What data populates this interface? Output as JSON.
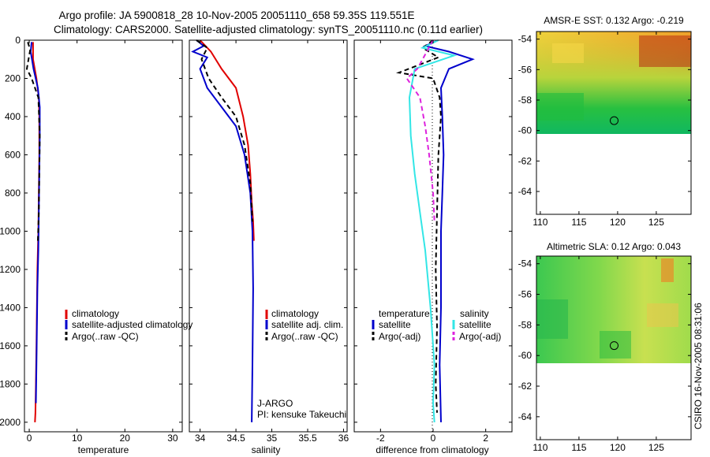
{
  "page": {
    "title_line1": "Argo profile: JA 5900818_28 10-Nov-2005 20051110_658 59.35S 119.551E",
    "title_line2": "Climatology: CARS2000. Satellite-adjusted climatology: synTS_20051110.nc (0.11d earlier)",
    "footer_stamp": "CSIRO 16-Nov-2005 08:31:06"
  },
  "colors": {
    "red": "#e00000",
    "blue": "#0000cc",
    "black": "#000000",
    "cyan": "#33e6e6",
    "magenta": "#dd22dd"
  },
  "chart_data": [
    {
      "id": "temperature",
      "type": "line",
      "xlabel": "temperature",
      "xlim": [
        -1,
        32
      ],
      "ylim": [
        2050,
        0
      ],
      "x_ticks": [
        0,
        10,
        20,
        30
      ],
      "y_ticks": [
        0,
        200,
        400,
        600,
        800,
        1000,
        1200,
        1400,
        1600,
        1800,
        2000
      ],
      "legend": [
        "climatology",
        "satellite-adjusted climatology",
        "Argo(..raw -QC)"
      ],
      "series": [
        {
          "name": "climatology",
          "color": "red",
          "dash": false,
          "x": [
            0.8,
            0.8,
            1.5,
            2.0,
            2.1,
            2.1,
            2.0,
            1.9,
            1.7,
            1.6,
            1.5,
            1.4,
            1.3,
            1.2
          ],
          "y": [
            10,
            100,
            200,
            300,
            400,
            600,
            800,
            1000,
            1200,
            1400,
            1600,
            1800,
            1950,
            2000
          ]
        },
        {
          "name": "satellite-adjusted climatology",
          "color": "blue",
          "dash": false,
          "x": [
            0.5,
            0.3,
            0.9,
            1.8,
            2.2,
            2.2,
            2.1,
            2.0,
            1.9,
            1.7,
            1.6,
            1.5,
            1.4
          ],
          "y": [
            10,
            60,
            150,
            250,
            350,
            500,
            700,
            900,
            1100,
            1300,
            1500,
            1700,
            1900
          ]
        },
        {
          "name": "Argo(..raw -QC)",
          "color": "black",
          "dash": true,
          "x": [
            -0.3,
            0.2,
            -0.5,
            0.5,
            1.9,
            2.2,
            2.1,
            2.0,
            1.8
          ],
          "y": [
            10,
            50,
            150,
            200,
            300,
            500,
            700,
            900,
            1050
          ]
        }
      ]
    },
    {
      "id": "salinity",
      "type": "line",
      "xlabel": "salinity",
      "xlim": [
        33.85,
        36.05
      ],
      "ylim": [
        2050,
        0
      ],
      "x_ticks": [
        34,
        34.5,
        35,
        35.5,
        36
      ],
      "legend": [
        "climatology",
        "satellite adj. clim.",
        "Argo(..raw -QC)"
      ],
      "annotation": [
        "J-ARGO",
        "PI: kensuke Takeuchi"
      ],
      "series": [
        {
          "name": "climatology",
          "color": "red",
          "dash": false,
          "x": [
            34.0,
            34.15,
            34.3,
            34.5,
            34.6,
            34.67,
            34.7,
            34.72,
            34.74,
            34.75,
            34.75
          ],
          "y": [
            0,
            60,
            150,
            250,
            400,
            550,
            700,
            850,
            950,
            1050,
            1050
          ]
        },
        {
          "name": "satellite adj. clim.",
          "color": "blue",
          "dash": false,
          "x": [
            33.95,
            34.05,
            33.9,
            34.1,
            34.0,
            34.1,
            34.3,
            34.5,
            34.62,
            34.7,
            34.73,
            34.74,
            34.73,
            34.72
          ],
          "y": [
            0,
            30,
            60,
            90,
            150,
            250,
            350,
            450,
            600,
            800,
            1000,
            1300,
            1700,
            2000
          ]
        },
        {
          "name": "Argo(..raw -QC)",
          "color": "black",
          "dash": true,
          "x": [
            33.95,
            34.1,
            34.02,
            34.12,
            34.3,
            34.5,
            34.62,
            34.7,
            34.73
          ],
          "y": [
            0,
            40,
            100,
            200,
            300,
            400,
            550,
            750,
            950
          ]
        }
      ]
    },
    {
      "id": "difference",
      "type": "line",
      "xlabel": "difference from climatology",
      "xlim": [
        -3,
        3
      ],
      "ylim": [
        2050,
        0
      ],
      "x_ticks": [
        -2,
        0,
        2
      ],
      "legend_temperature_header": "temperature",
      "legend_salinity_header": "salinity",
      "legend": [
        "satellite",
        "Argo(-adj)",
        "satellite",
        "Argo(-adj)"
      ],
      "series": [
        {
          "name": "temperature satellite",
          "color": "blue",
          "dash": false,
          "x": [
            0.2,
            -0.3,
            0.6,
            1.5,
            0.6,
            0.3,
            0.35,
            0.4,
            0.35,
            0.3,
            0.3,
            0.3,
            0.25,
            0.3
          ],
          "y": [
            0,
            30,
            60,
            100,
            150,
            250,
            400,
            600,
            800,
            1000,
            1200,
            1400,
            1700,
            2000
          ]
        },
        {
          "name": "temperature Argo(-adj)",
          "color": "black",
          "dash": true,
          "x": [
            0.0,
            -0.4,
            0.2,
            -1.3,
            0.0,
            0.25,
            0.3,
            0.2,
            0.15,
            0.1,
            0.15,
            0.1,
            0.15
          ],
          "y": [
            0,
            40,
            90,
            170,
            200,
            300,
            400,
            600,
            900,
            1200,
            1500,
            1800,
            1950
          ]
        },
        {
          "name": "salinity satellite",
          "color": "cyan",
          "dash": false,
          "x": [
            0.2,
            -0.4,
            0.8,
            -0.7,
            -0.9,
            -0.85,
            -0.7,
            -0.5,
            -0.3,
            -0.1,
            0.05,
            0.0,
            0.05
          ],
          "y": [
            0,
            40,
            80,
            150,
            300,
            500,
            700,
            900,
            1100,
            1400,
            1700,
            1900,
            2000
          ]
        },
        {
          "name": "salinity Argo(-adj)",
          "color": "magenta",
          "dash": true,
          "x": [
            0.0,
            -0.6,
            -1.0,
            -0.5,
            -0.3,
            -0.15,
            0.0,
            0.05
          ],
          "y": [
            0,
            150,
            200,
            300,
            450,
            600,
            800,
            950
          ]
        }
      ]
    },
    {
      "id": "sst-map",
      "type": "heatmap",
      "title": "AMSR-E SST: 0.132 Argo: -0.219",
      "xlim": [
        109.5,
        129.5
      ],
      "ylim": [
        -65.5,
        -53.5
      ],
      "x_ticks": [
        110,
        115,
        120,
        125
      ],
      "y_ticks": [
        -54,
        -56,
        -58,
        -60,
        -62,
        -64
      ],
      "data_extent_y": [
        -60.05,
        -53.5
      ],
      "marker": {
        "lon": 119.551,
        "lat": -59.35
      }
    },
    {
      "id": "sla-map",
      "type": "heatmap",
      "title": "Altimetric SLA: 0.12 Argo: 0.043",
      "xlim": [
        109.5,
        129.5
      ],
      "ylim": [
        -65.5,
        -53.5
      ],
      "x_ticks": [
        110,
        115,
        120,
        125
      ],
      "y_ticks": [
        -54,
        -56,
        -58,
        -60,
        -62,
        -64
      ],
      "data_extent_y": [
        -60.05,
        -53.5
      ],
      "marker": {
        "lon": 119.551,
        "lat": -59.35
      }
    }
  ]
}
